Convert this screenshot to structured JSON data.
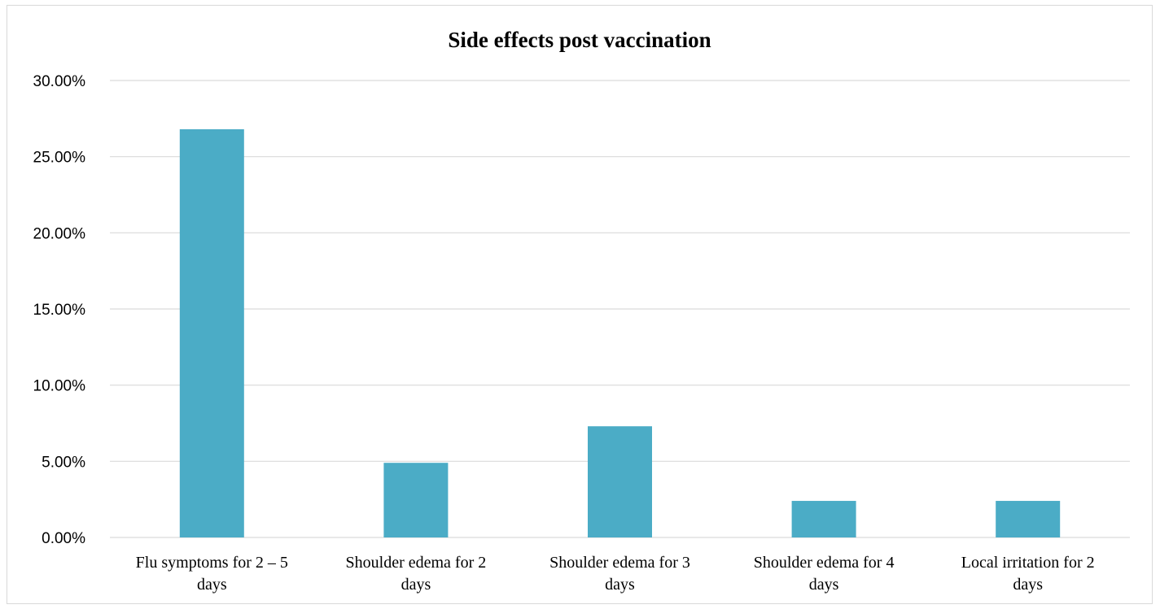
{
  "chart_data": {
    "type": "bar",
    "title": "Side effects post vaccination",
    "xlabel": "",
    "ylabel": "",
    "categories": [
      [
        "Flu symptoms for 2 – 5",
        "days"
      ],
      [
        "Shoulder edema for 2",
        "days"
      ],
      [
        "Shoulder edema for 3",
        "days"
      ],
      [
        "Shoulder edema for 4",
        "days"
      ],
      [
        "Local irritation for 2",
        "days"
      ]
    ],
    "values": [
      26.8,
      4.9,
      7.3,
      2.4,
      2.4
    ],
    "ylim": [
      0,
      30
    ],
    "yticks": [
      "0.00%",
      "5.00%",
      "10.00%",
      "15.00%",
      "20.00%",
      "25.00%",
      "30.00%"
    ],
    "bar_color": "#4BACC6",
    "grid": true,
    "legend": "none"
  }
}
